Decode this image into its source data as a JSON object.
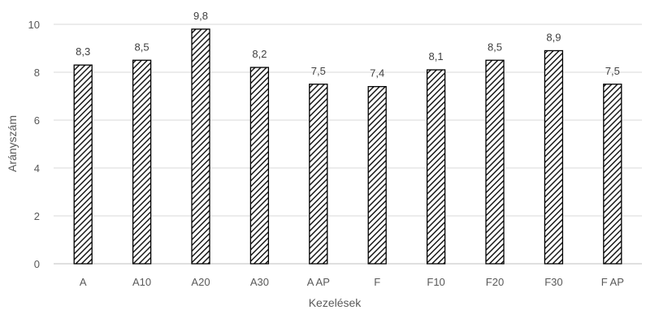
{
  "chart_data": {
    "type": "bar",
    "categories": [
      "A",
      "A10",
      "A20",
      "A30",
      "A AP",
      "F",
      "F10",
      "F20",
      "F30",
      "F AP"
    ],
    "values": [
      8.3,
      8.5,
      9.8,
      8.2,
      7.5,
      7.4,
      8.1,
      8.5,
      8.9,
      7.5
    ],
    "data_labels": [
      "8,3",
      "8,5",
      "9,8",
      "8,2",
      "7,5",
      "7,4",
      "8,1",
      "8,5",
      "8,9",
      "7,5"
    ],
    "title": "",
    "xlabel": "Kezelések",
    "ylabel": "Arányszám",
    "ylim": [
      0,
      10
    ],
    "yticks": [
      0,
      2,
      4,
      6,
      8,
      10
    ],
    "grid": true,
    "legend": "none",
    "bar_style": "diagonal-hatch",
    "bar_stroke_color": "#000000",
    "gridline_color": "#d9d9d9"
  }
}
